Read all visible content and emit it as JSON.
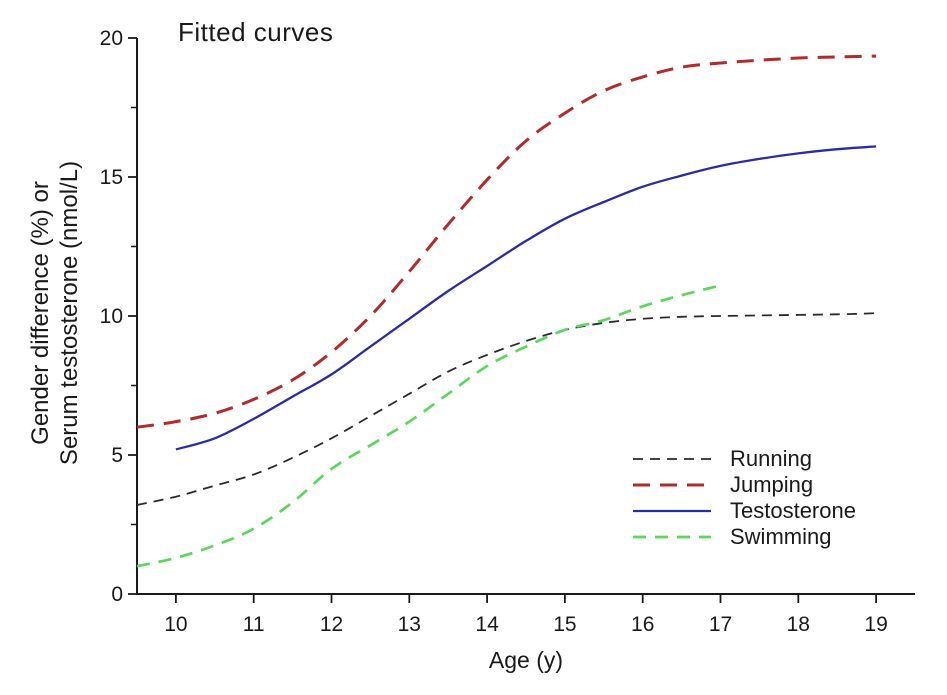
{
  "chart_data": {
    "type": "line",
    "title": "Fitted curves",
    "xlabel": "Age (y)",
    "ylabel_line1": "Gender difference (%) or",
    "ylabel_line2": "Serum testosterone (nmol/L)",
    "xlim": [
      9.5,
      19.5
    ],
    "ylim": [
      0,
      20
    ],
    "x_ticks": [
      10,
      11,
      12,
      13,
      14,
      15,
      16,
      17,
      18,
      19
    ],
    "y_ticks": [
      0,
      5,
      10,
      15,
      20
    ],
    "y_minor_ticks": [
      2.5,
      7.5,
      12.5,
      17.5
    ],
    "grid": false,
    "legend_position": "inside lower right",
    "axis_color": "#1a1a1a",
    "series": [
      {
        "name": "Running",
        "color": "#2a2a2a",
        "style": "dashed",
        "stroke_width": 1.8,
        "dash": [
          10,
          7
        ],
        "x": [
          9.5,
          10,
          10.5,
          11,
          11.5,
          12,
          12.5,
          13,
          13.5,
          14,
          14.5,
          15,
          15.5,
          16,
          16.5,
          17,
          17.5,
          18,
          18.5,
          19
        ],
        "y": [
          3.2,
          3.5,
          3.9,
          4.3,
          4.9,
          5.6,
          6.4,
          7.2,
          8.0,
          8.6,
          9.1,
          9.5,
          9.75,
          9.9,
          9.97,
          10.0,
          10.02,
          10.04,
          10.06,
          10.1
        ]
      },
      {
        "name": "Jumping",
        "color": "#b22a2a",
        "style": "dashed",
        "stroke_width": 3,
        "dash": [
          17,
          10
        ],
        "x": [
          9.5,
          10,
          10.5,
          11,
          11.5,
          12,
          12.5,
          13,
          13.5,
          14,
          14.5,
          15,
          15.5,
          16,
          16.5,
          17,
          17.5,
          18,
          18.5,
          19
        ],
        "y": [
          6.0,
          6.2,
          6.5,
          7.0,
          7.7,
          8.7,
          10.0,
          11.6,
          13.3,
          14.9,
          16.3,
          17.3,
          18.1,
          18.6,
          18.95,
          19.1,
          19.2,
          19.28,
          19.32,
          19.35
        ]
      },
      {
        "name": "Testosterone",
        "color": "#2b2ba6",
        "style": "solid",
        "stroke_width": 2.3,
        "dash": null,
        "x": [
          10,
          10.5,
          11,
          11.5,
          12,
          12.5,
          13,
          13.5,
          14,
          14.5,
          15,
          15.5,
          16,
          16.5,
          17,
          17.5,
          18,
          18.5,
          19
        ],
        "y": [
          5.2,
          5.6,
          6.3,
          7.1,
          7.9,
          8.9,
          9.9,
          10.9,
          11.8,
          12.7,
          13.5,
          14.1,
          14.65,
          15.05,
          15.4,
          15.65,
          15.85,
          16.0,
          16.1
        ]
      },
      {
        "name": "Swimming",
        "color": "#5cd65c",
        "style": "dashed",
        "stroke_width": 2.7,
        "dash": [
          13,
          9
        ],
        "x": [
          9.5,
          10,
          10.5,
          11,
          11.5,
          12,
          12.5,
          13,
          13.5,
          14,
          14.5,
          15,
          15.5,
          16,
          16.5,
          17
        ],
        "y": [
          1.0,
          1.3,
          1.75,
          2.35,
          3.3,
          4.5,
          5.35,
          6.2,
          7.2,
          8.2,
          8.9,
          9.5,
          9.85,
          10.35,
          10.75,
          11.1
        ]
      }
    ]
  }
}
